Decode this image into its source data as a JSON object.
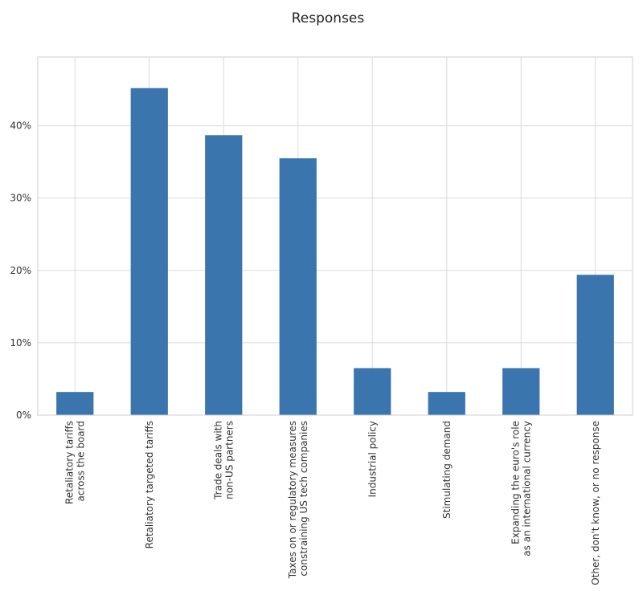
{
  "chart_data": {
    "type": "bar",
    "title": "Responses",
    "xlabel": "",
    "ylabel": "",
    "categories": [
      [
        "Retaliatory tariffs",
        "across the board"
      ],
      [
        "Retaliatory targeted tariffs"
      ],
      [
        "Trade deals with",
        "non-US partners"
      ],
      [
        "Taxes on or regulatory measures",
        "constraining US tech companies"
      ],
      [
        "Industrial policy"
      ],
      [
        "Stimulating demand"
      ],
      [
        "Expanding the euro's role",
        "as an international currency"
      ],
      [
        "Other, don't know, or no response"
      ]
    ],
    "values": [
      3.2,
      45.2,
      38.7,
      35.5,
      6.5,
      3.2,
      6.5,
      19.4
    ],
    "ylim": [
      0,
      49.5
    ],
    "yticks": [
      0,
      10,
      20,
      30,
      40
    ],
    "ytick_labels": [
      "0%",
      "10%",
      "20%",
      "30%",
      "40%"
    ],
    "grid": true,
    "legend": "none",
    "bar_color": "#3a75ad"
  }
}
